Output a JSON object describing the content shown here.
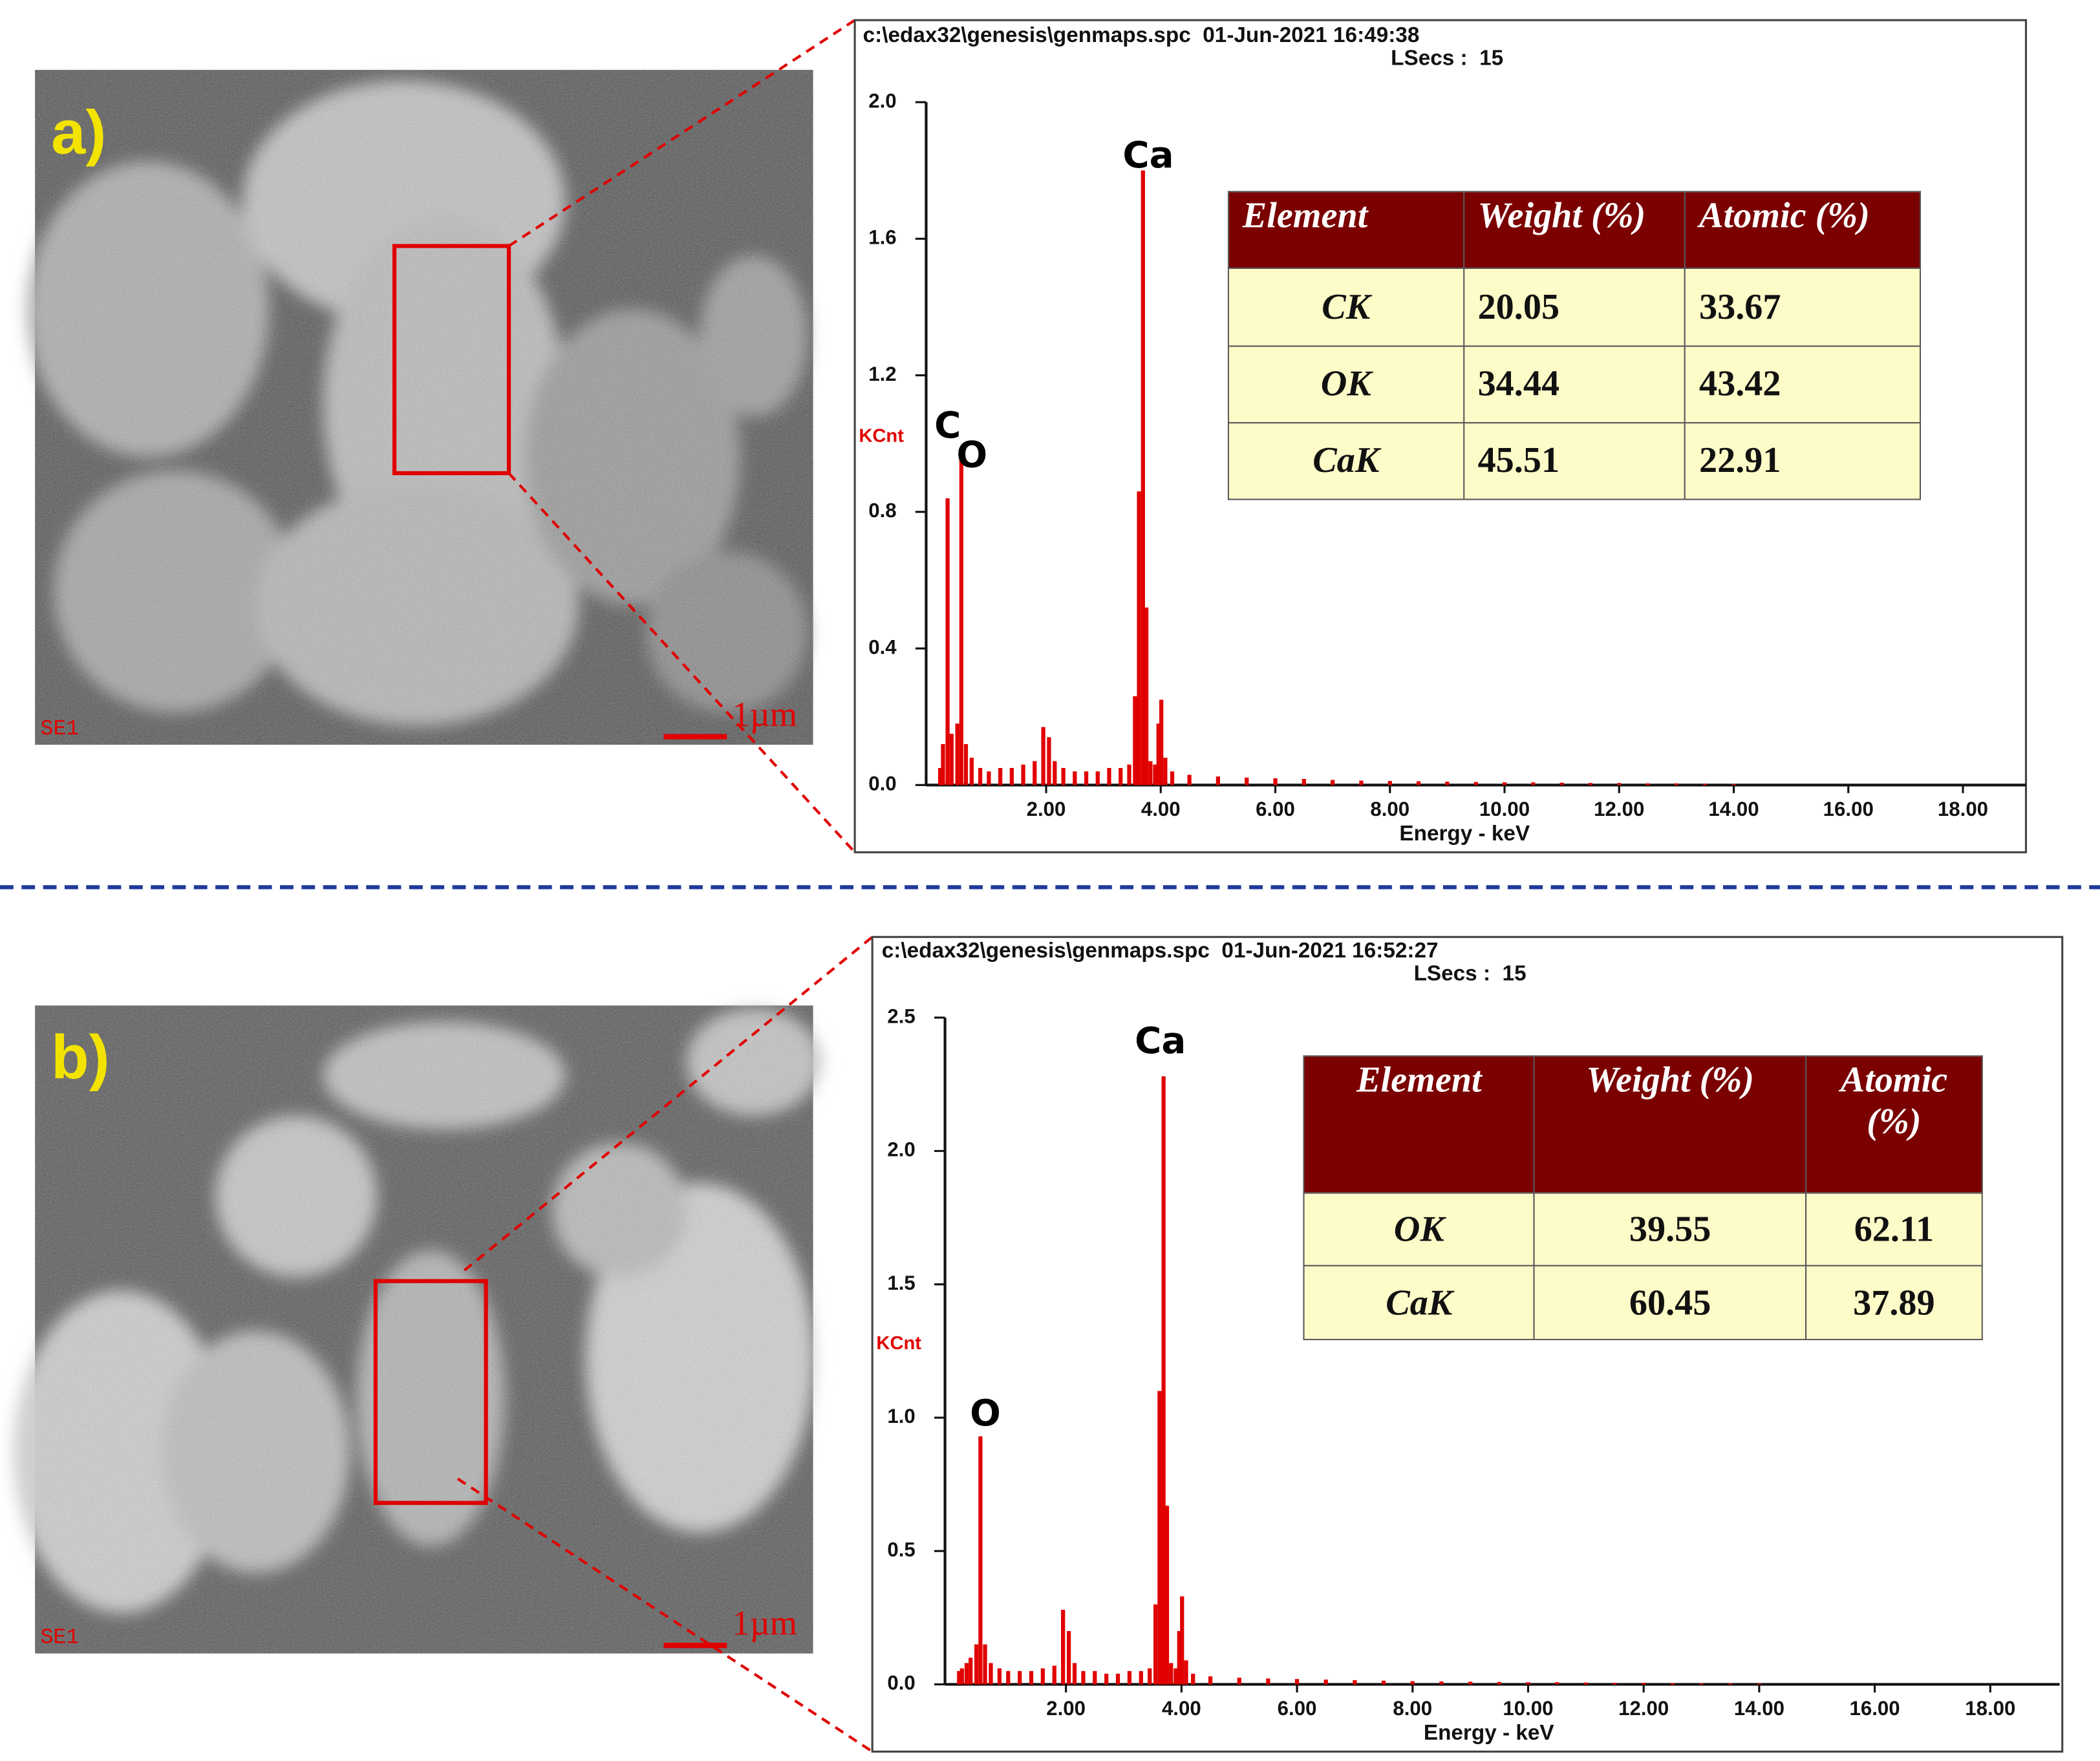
{
  "panels": [
    {
      "label": "a)",
      "detector": "SE1",
      "scale_bar": "1µm"
    },
    {
      "label": "b)",
      "detector": "SE1",
      "scale_bar": "1µm"
    }
  ],
  "chart_data": [
    {
      "type": "line",
      "title": "c:\\edax32\\genesis\\genmaps.spc  01-Jun-2021 16:49:38",
      "subtitle": "LSecs :  15",
      "y_label": "KCnt",
      "x_label": "Energy - keV",
      "color": "#e00000",
      "annotations": [
        "C",
        "O",
        "Ca"
      ],
      "xlim": [
        0,
        19.1
      ],
      "xticks": [
        {
          "value": 2,
          "label": "2.00"
        },
        {
          "value": 4,
          "label": "4.00"
        },
        {
          "value": 6,
          "label": "6.00"
        },
        {
          "value": 8,
          "label": "8.00"
        },
        {
          "value": 10,
          "label": "10.00"
        },
        {
          "value": 12,
          "label": "12.00"
        },
        {
          "value": 14,
          "label": "14.00"
        },
        {
          "value": 16,
          "label": "16.00"
        },
        {
          "value": 18,
          "label": "18.00"
        }
      ],
      "ylim": [
        0,
        2.0
      ],
      "yticks": [
        {
          "value": 0,
          "label": "0.0"
        },
        0.4,
        0.8,
        1.2,
        1.6,
        {
          "value": 2,
          "label": "2.0"
        }
      ],
      "x": [
        0.15,
        0.2,
        0.28,
        0.35,
        0.45,
        0.52,
        0.6,
        0.7,
        0.85,
        1.0,
        1.2,
        1.4,
        1.6,
        1.8,
        1.95,
        2.05,
        2.15,
        2.3,
        2.5,
        2.7,
        2.9,
        3.1,
        3.3,
        3.45,
        3.55,
        3.62,
        3.69,
        3.75,
        3.82,
        3.9,
        3.96,
        4.01,
        4.08,
        4.2,
        4.5,
        5,
        5.5,
        6,
        6.5,
        7,
        7.5,
        8,
        8.5,
        9,
        9.5,
        10,
        10.5,
        11,
        11.5,
        12,
        12.5,
        13,
        13.5,
        14
      ],
      "values": [
        0.05,
        0.12,
        0.84,
        0.15,
        0.18,
        0.96,
        0.12,
        0.08,
        0.05,
        0.04,
        0.05,
        0.05,
        0.06,
        0.07,
        0.17,
        0.14,
        0.07,
        0.05,
        0.04,
        0.04,
        0.04,
        0.05,
        0.05,
        0.06,
        0.26,
        0.86,
        1.8,
        0.52,
        0.07,
        0.06,
        0.18,
        0.25,
        0.08,
        0.04,
        0.03,
        0.025,
        0.022,
        0.02,
        0.018,
        0.015,
        0.013,
        0.012,
        0.011,
        0.01,
        0.009,
        0.008,
        0.008,
        0.007,
        0.006,
        0.006,
        0.005,
        0.005,
        0.004,
        0.003
      ],
      "table": {
        "header": [
          "Element",
          "Weight (%)",
          "Atomic (%)"
        ],
        "rows": [
          [
            "CK",
            "20.05",
            "33.67"
          ],
          [
            "OK",
            "34.44",
            "43.42"
          ],
          [
            "CaK",
            "45.51",
            "22.91"
          ]
        ]
      }
    },
    {
      "type": "line",
      "title": "c:\\edax32\\genesis\\genmaps.spc  01-Jun-2021 16:52:27",
      "subtitle": "LSecs :  15",
      "y_label": "KCnt",
      "x_label": "Energy - keV",
      "color": "#e00000",
      "annotations": [
        "O",
        "Ca"
      ],
      "xlim": [
        0,
        19.2
      ],
      "xticks": [
        {
          "value": 2,
          "label": "2.00"
        },
        {
          "value": 4,
          "label": "4.00"
        },
        {
          "value": 6,
          "label": "6.00"
        },
        {
          "value": 8,
          "label": "8.00"
        },
        {
          "value": 10,
          "label": "10.00"
        },
        {
          "value": 12,
          "label": "12.00"
        },
        {
          "value": 14,
          "label": "14.00"
        },
        {
          "value": 16,
          "label": "16.00"
        },
        {
          "value": 18,
          "label": "18.00"
        }
      ],
      "ylim": [
        0,
        2.5
      ],
      "yticks": [
        {
          "value": 0,
          "label": "0.0"
        },
        0.5,
        {
          "value": 1,
          "label": "1.0"
        },
        1.5,
        {
          "value": 2,
          "label": "2.0"
        },
        2.5
      ],
      "x": [
        0.15,
        0.2,
        0.28,
        0.35,
        0.45,
        0.52,
        0.6,
        0.7,
        0.85,
        1.0,
        1.2,
        1.4,
        1.6,
        1.8,
        1.95,
        2.05,
        2.15,
        2.3,
        2.5,
        2.7,
        2.9,
        3.1,
        3.3,
        3.45,
        3.55,
        3.62,
        3.69,
        3.75,
        3.82,
        3.9,
        3.96,
        4.01,
        4.08,
        4.2,
        4.5,
        5,
        5.5,
        6,
        6.5,
        7,
        7.5,
        8,
        8.5,
        9,
        9.5,
        10,
        10.5,
        11,
        11.5,
        12,
        12.5,
        13,
        13.5,
        14
      ],
      "values": [
        0.05,
        0.06,
        0.08,
        0.1,
        0.15,
        0.93,
        0.15,
        0.08,
        0.06,
        0.05,
        0.05,
        0.05,
        0.06,
        0.07,
        0.28,
        0.2,
        0.08,
        0.05,
        0.05,
        0.04,
        0.04,
        0.05,
        0.05,
        0.06,
        0.3,
        1.1,
        2.28,
        0.67,
        0.08,
        0.06,
        0.2,
        0.33,
        0.09,
        0.04,
        0.03,
        0.025,
        0.022,
        0.02,
        0.018,
        0.016,
        0.014,
        0.012,
        0.011,
        0.01,
        0.009,
        0.008,
        0.008,
        0.007,
        0.006,
        0.006,
        0.005,
        0.004,
        0.004,
        0.003
      ],
      "table": {
        "header": [
          "Element",
          "Weight (%)",
          "Atomic (%)"
        ],
        "rows": [
          [
            "OK",
            "39.55",
            "62.11"
          ],
          [
            "CaK",
            "60.45",
            "37.89"
          ]
        ]
      }
    }
  ]
}
